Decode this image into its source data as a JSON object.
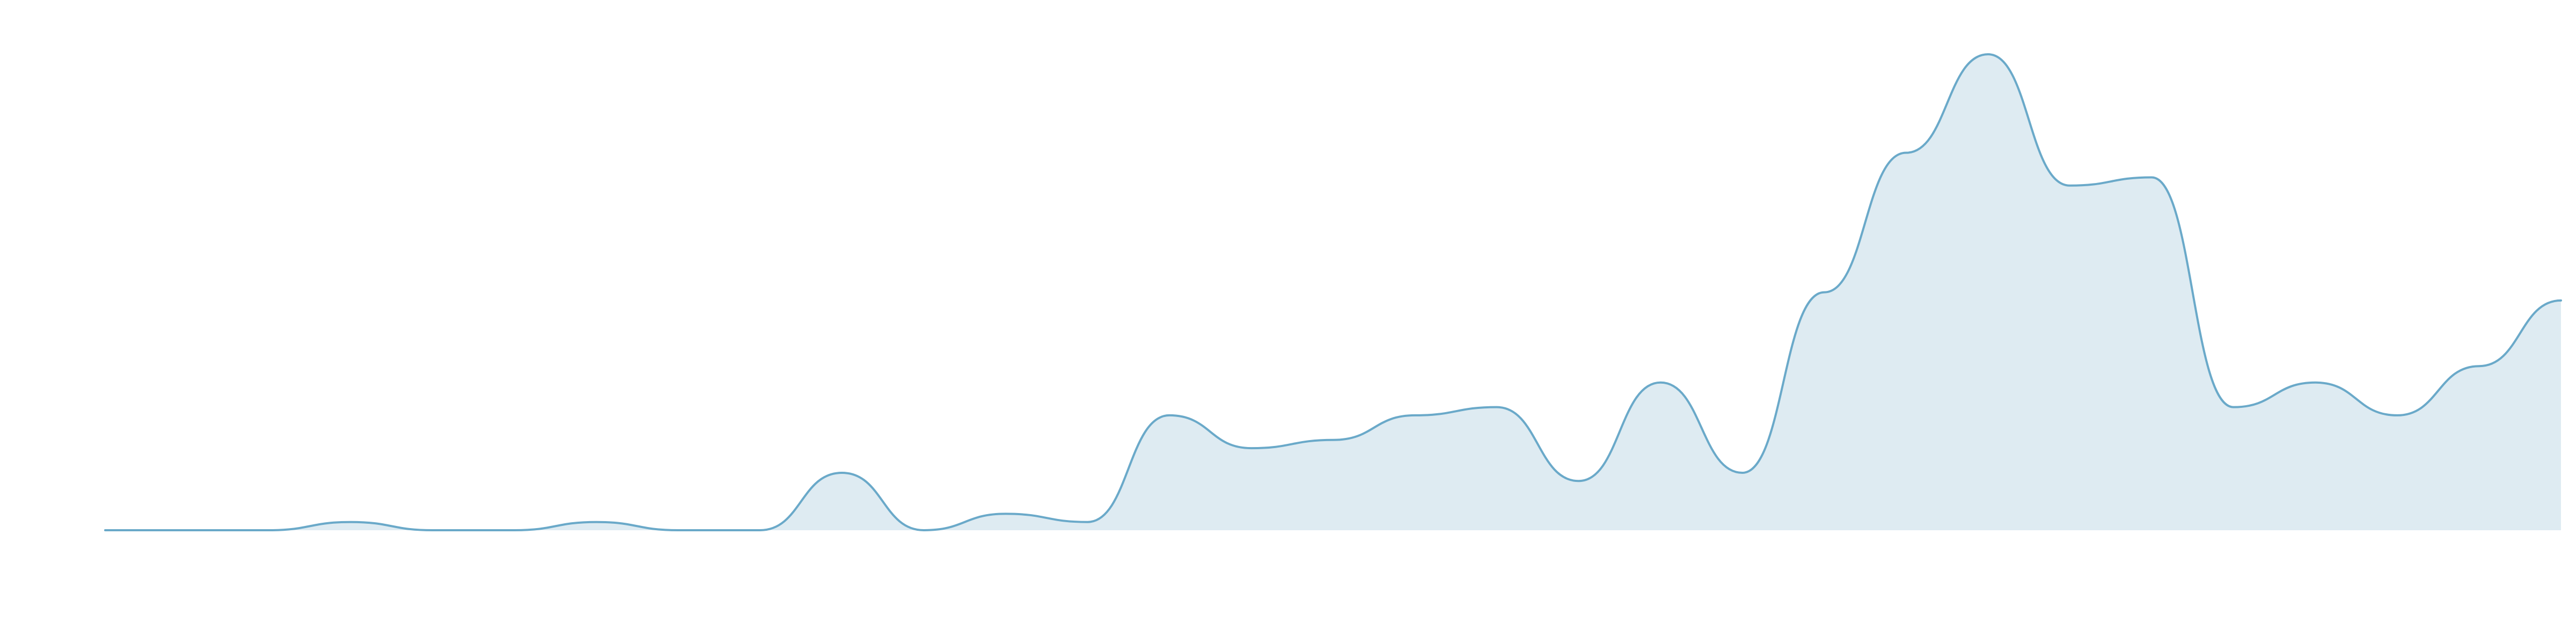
{
  "chart_data": {
    "type": "area",
    "title": "",
    "xlabel": "",
    "ylabel": "",
    "grid": false,
    "legend": "none",
    "x": [
      1,
      2,
      3,
      4,
      5,
      6,
      7,
      8,
      9,
      10,
      11,
      12,
      13,
      14,
      15,
      16,
      17,
      18,
      19,
      20,
      21,
      22,
      23,
      24,
      25,
      26,
      27,
      28,
      29,
      30,
      31
    ],
    "values": [
      0,
      0,
      0,
      1,
      0,
      0,
      1,
      0,
      0,
      7,
      0,
      2,
      1,
      14,
      10,
      11,
      14,
      15,
      6,
      18,
      7,
      29,
      46,
      58,
      42,
      43,
      15,
      18,
      14,
      20,
      28
    ],
    "ylim": [
      0,
      62
    ],
    "colors": {
      "line": "#6aa9c9",
      "fill": "#deebf2"
    }
  }
}
